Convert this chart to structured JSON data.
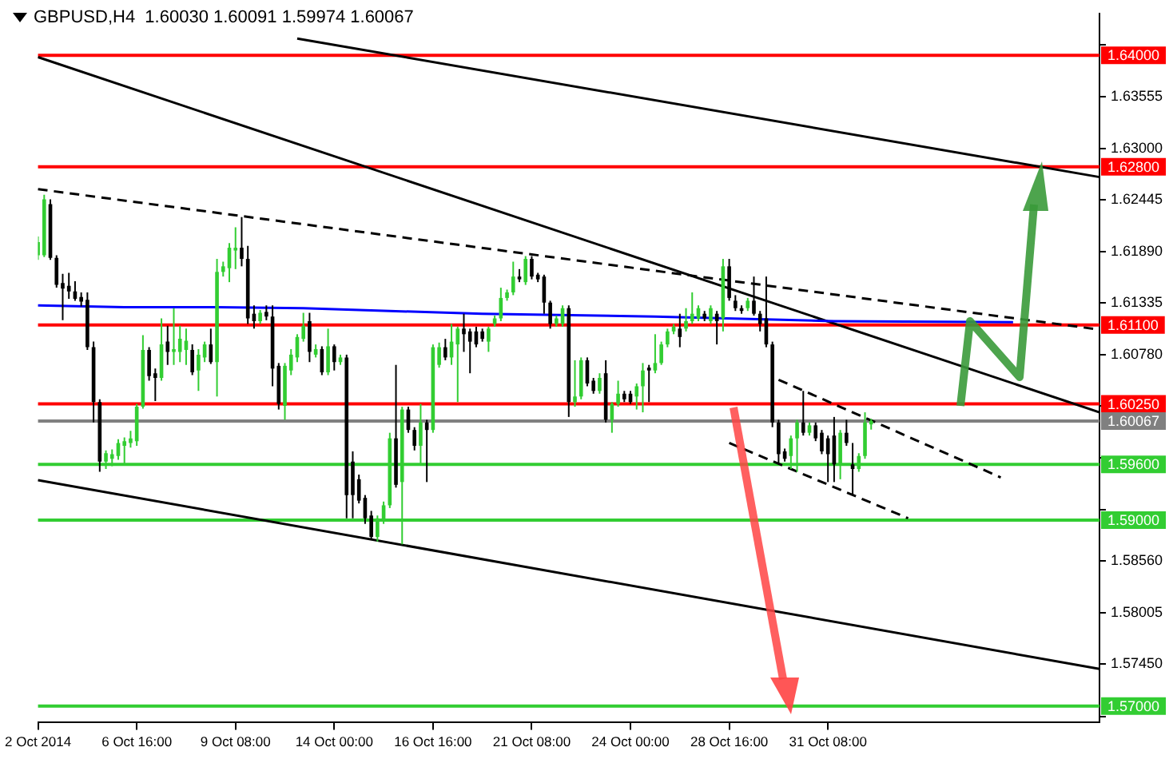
{
  "chart_data": {
    "type": "candlestick",
    "title": "GBPUSD,H4  1.60030 1.60091 1.59974 1.60067",
    "categories": [
      "2 Oct 2014",
      null,
      null,
      null,
      null,
      null,
      null,
      null,
      null,
      null,
      null,
      null,
      null,
      null,
      null,
      null,
      "6 Oct 16:00",
      null,
      null,
      null,
      null,
      null,
      null,
      null,
      null,
      null,
      null,
      null,
      null,
      null,
      null,
      null,
      "9 Oct 08:00",
      null,
      null,
      null,
      null,
      null,
      null,
      null,
      null,
      null,
      null,
      null,
      null,
      null,
      null,
      null,
      "14 Oct 00:00",
      null,
      null,
      null,
      null,
      null,
      null,
      null,
      null,
      null,
      null,
      null,
      null,
      null,
      null,
      null,
      "16 Oct 16:00",
      null,
      null,
      null,
      null,
      null,
      null,
      null,
      null,
      null,
      null,
      null,
      null,
      null,
      null,
      null,
      "21 Oct 08:00",
      null,
      null,
      null,
      null,
      null,
      null,
      null,
      null,
      null,
      null,
      null,
      null,
      null,
      null,
      null,
      "24 Oct 00:00",
      null,
      null,
      null,
      null,
      null,
      null,
      null,
      null,
      null,
      null,
      null,
      null,
      null,
      null,
      null,
      "28 Oct 16:00",
      null,
      null,
      null,
      null,
      null,
      null,
      null,
      null,
      null,
      null,
      null,
      null,
      null,
      null,
      null,
      "31 Oct 08:00",
      null,
      null,
      null,
      null,
      null,
      null,
      null,
      null,
      null,
      null,
      null,
      null,
      null,
      null,
      null,
      null,
      null,
      null,
      null,
      null,
      null,
      null,
      null,
      null,
      null,
      null,
      null,
      null,
      null,
      null,
      null,
      null,
      null,
      null,
      null,
      null,
      null,
      null,
      null,
      null,
      null,
      null,
      null,
      null
    ],
    "ohlc": [
      [
        1.6185,
        1.6205,
        1.618,
        1.6199
      ],
      [
        1.6185,
        1.625,
        1.6183,
        1.6245
      ],
      [
        1.624,
        1.6245,
        1.618,
        1.6182
      ],
      [
        1.6182,
        1.6185,
        1.615,
        1.6153
      ],
      [
        1.6155,
        1.6165,
        1.6115,
        1.6149
      ],
      [
        1.6152,
        1.6166,
        1.6138,
        1.6146
      ],
      [
        1.6146,
        1.6157,
        1.6136,
        1.6138
      ],
      [
        1.614,
        1.6145,
        1.613,
        1.6135
      ],
      [
        1.6137,
        1.6145,
        1.6083,
        1.6086
      ],
      [
        1.6086,
        1.6092,
        1.6005,
        1.6027
      ],
      [
        1.6027,
        1.603,
        1.5952,
        1.5963
      ],
      [
        1.5963,
        1.5975,
        1.5955,
        1.5972
      ],
      [
        1.5966,
        1.5976,
        1.5958,
        1.5971
      ],
      [
        1.5969,
        1.5987,
        1.5965,
        1.5983
      ],
      [
        1.598,
        1.5989,
        1.5961,
        1.5985
      ],
      [
        1.5983,
        1.5996,
        1.5978,
        1.5988
      ],
      [
        1.5985,
        1.6025,
        1.598,
        1.6022
      ],
      [
        1.6022,
        1.6099,
        1.602,
        1.6083
      ],
      [
        1.6083,
        1.6086,
        1.605,
        1.6055
      ],
      [
        1.6058,
        1.6063,
        1.6028,
        1.6053
      ],
      [
        1.6053,
        1.6117,
        1.605,
        1.6089
      ],
      [
        1.6092,
        1.6109,
        1.6067,
        1.6081
      ],
      [
        1.6081,
        1.6128,
        1.6067,
        1.6084
      ],
      [
        1.6081,
        1.6109,
        1.607,
        1.6095
      ],
      [
        1.6083,
        1.6106,
        1.6067,
        1.6093
      ],
      [
        1.6083,
        1.6089,
        1.6056,
        1.6059
      ],
      [
        1.6061,
        1.6084,
        1.6039,
        1.6078
      ],
      [
        1.6075,
        1.6092,
        1.607,
        1.6089
      ],
      [
        1.6089,
        1.6106,
        1.6068,
        1.607
      ],
      [
        1.607,
        1.6181,
        1.6033,
        1.6167
      ],
      [
        1.6167,
        1.6178,
        1.6162,
        1.6173
      ],
      [
        1.6171,
        1.6198,
        1.6156,
        1.6193
      ],
      [
        1.619,
        1.6215,
        1.617,
        1.6193
      ],
      [
        1.6193,
        1.6226,
        1.6173,
        1.6181
      ],
      [
        1.6181,
        1.6195,
        1.6111,
        1.6117
      ],
      [
        1.6122,
        1.6131,
        1.6106,
        1.6114
      ],
      [
        1.6114,
        1.6126,
        1.6111,
        1.6123
      ],
      [
        1.6124,
        1.6131,
        1.6115,
        1.6119
      ],
      [
        1.6119,
        1.6131,
        1.6044,
        1.6063
      ],
      [
        1.6066,
        1.6069,
        1.6019,
        1.6025
      ],
      [
        1.6023,
        1.6069,
        1.6008,
        1.6066
      ],
      [
        1.6061,
        1.6084,
        1.6056,
        1.6078
      ],
      [
        1.6075,
        1.61,
        1.607,
        1.6097
      ],
      [
        1.6095,
        1.6123,
        1.6092,
        1.6109
      ],
      [
        1.6114,
        1.6123,
        1.607,
        1.6081
      ],
      [
        1.6078,
        1.6089,
        1.6075,
        1.6084
      ],
      [
        1.6084,
        1.6087,
        1.6056,
        1.6059
      ],
      [
        1.6059,
        1.6106,
        1.6056,
        1.6087
      ],
      [
        1.6087,
        1.6089,
        1.6061,
        1.607
      ],
      [
        1.607,
        1.6078,
        1.6067,
        1.6075
      ],
      [
        1.6075,
        1.6078,
        1.5902,
        1.5927
      ],
      [
        1.5963,
        1.5974,
        1.5902,
        1.5927
      ],
      [
        1.5944,
        1.5949,
        1.5918,
        1.5921
      ],
      [
        1.5924,
        1.5927,
        1.5896,
        1.5902
      ],
      [
        1.5905,
        1.591,
        1.5879,
        1.5882
      ],
      [
        1.5882,
        1.5905,
        1.5877,
        1.5902
      ],
      [
        1.59,
        1.592,
        1.5896,
        1.5916
      ],
      [
        1.5916,
        1.5994,
        1.5913,
        1.5988
      ],
      [
        1.5988,
        1.6067,
        1.5935,
        1.5938
      ],
      [
        1.5941,
        1.6022,
        1.5874,
        1.6019
      ],
      [
        1.6019,
        1.6022,
        1.5994,
        1.5997
      ],
      [
        1.5997,
        1.6,
        1.5975,
        1.598
      ],
      [
        1.598,
        1.6025,
        1.596,
        1.6005
      ],
      [
        1.6005,
        1.6008,
        1.5941,
        1.5997
      ],
      [
        1.5997,
        1.6089,
        1.5994,
        1.6086
      ],
      [
        1.6067,
        1.6091,
        1.6064,
        1.6086
      ],
      [
        1.6086,
        1.6095,
        1.6072,
        1.6075
      ],
      [
        1.6075,
        1.6111,
        1.6067,
        1.6092
      ],
      [
        1.6089,
        1.6108,
        1.6027,
        1.6106
      ],
      [
        1.6106,
        1.6122,
        1.6081,
        1.61
      ],
      [
        1.6103,
        1.6106,
        1.6058,
        1.6092
      ],
      [
        1.6103,
        1.6108,
        1.6086,
        1.6089
      ],
      [
        1.6103,
        1.6106,
        1.6092,
        1.6095
      ],
      [
        1.6092,
        1.6108,
        1.6081,
        1.6106
      ],
      [
        1.6111,
        1.612,
        1.6108,
        1.6117
      ],
      [
        1.6117,
        1.615,
        1.6114,
        1.6139
      ],
      [
        1.6139,
        1.6148,
        1.6136,
        1.6145
      ],
      [
        1.6145,
        1.6178,
        1.6142,
        1.6162
      ],
      [
        1.6162,
        1.617,
        1.6156,
        1.6159
      ],
      [
        1.6156,
        1.6184,
        1.6153,
        1.6181
      ],
      [
        1.6181,
        1.6184,
        1.6159,
        1.6162
      ],
      [
        1.6164,
        1.6166,
        1.6156,
        1.6159
      ],
      [
        1.6162,
        1.6164,
        1.6122,
        1.6134
      ],
      [
        1.6134,
        1.6136,
        1.6106,
        1.6111
      ],
      [
        1.6111,
        1.612,
        1.6108,
        1.6117
      ],
      [
        1.6111,
        1.6131,
        1.6108,
        1.6128
      ],
      [
        1.6128,
        1.6131,
        1.6011,
        1.6027
      ],
      [
        1.6027,
        1.6072,
        1.6022,
        1.6033
      ],
      [
        1.6033,
        1.6075,
        1.603,
        1.6072
      ],
      [
        1.6072,
        1.6075,
        1.6044,
        1.6047
      ],
      [
        1.605,
        1.6053,
        1.6036,
        1.6039
      ],
      [
        1.6039,
        1.6058,
        1.6036,
        1.6053
      ],
      [
        1.6058,
        1.6072,
        1.6005,
        1.6008
      ],
      [
        1.6008,
        1.6027,
        1.5994,
        1.6025
      ],
      [
        1.6025,
        1.605,
        1.6022,
        1.6036
      ],
      [
        1.6036,
        1.6039,
        1.6027,
        1.603
      ],
      [
        1.6036,
        1.6039,
        1.6025,
        1.6027
      ],
      [
        1.6033,
        1.6047,
        1.6019,
        1.6044
      ],
      [
        1.6044,
        1.6069,
        1.6016,
        1.6061
      ],
      [
        1.6064,
        1.6067,
        1.6027,
        1.6061
      ],
      [
        1.6061,
        1.61,
        1.6058,
        1.6069
      ],
      [
        1.6069,
        1.6092,
        1.6067,
        1.6089
      ],
      [
        1.6089,
        1.6106,
        1.6086,
        1.6103
      ],
      [
        1.6103,
        1.6111,
        1.61,
        1.6108
      ],
      [
        1.6106,
        1.6122,
        1.6086,
        1.6097
      ],
      [
        1.6106,
        1.6128,
        1.6103,
        1.6114
      ],
      [
        1.6114,
        1.6145,
        1.6111,
        1.6122
      ],
      [
        1.6117,
        1.6131,
        1.6114,
        1.6128
      ],
      [
        1.6122,
        1.6125,
        1.6114,
        1.6117
      ],
      [
        1.6114,
        1.6131,
        1.6111,
        1.6128
      ],
      [
        1.6122,
        1.6125,
        1.6089,
        1.6114
      ],
      [
        1.6117,
        1.6181,
        1.6103,
        1.6173
      ],
      [
        1.6173,
        1.6181,
        1.6136,
        1.6139
      ],
      [
        1.6136,
        1.6142,
        1.6125,
        1.6128
      ],
      [
        1.6128,
        1.6131,
        1.6122,
        1.6125
      ],
      [
        1.6128,
        1.6139,
        1.6125,
        1.6136
      ],
      [
        1.6136,
        1.6162,
        1.612,
        1.6122
      ],
      [
        1.6122,
        1.6125,
        1.6103,
        1.6111
      ],
      [
        1.6117,
        1.6162,
        1.6086,
        1.6089
      ],
      [
        1.6089,
        1.6092,
        1.6,
        1.6005
      ],
      [
        1.6005,
        1.6008,
        1.596,
        1.5971
      ],
      [
        1.5974,
        1.5977,
        1.5963,
        1.5966
      ],
      [
        1.5969,
        1.5991,
        1.5955,
        1.5988
      ],
      [
        1.5988,
        1.6008,
        1.5952,
        1.6005
      ],
      [
        1.6005,
        1.6039,
        1.5991,
        1.5994
      ],
      [
        1.5994,
        1.6005,
        1.5991,
        1.6002
      ],
      [
        1.6002,
        1.6005,
        1.5985,
        1.5988
      ],
      [
        1.5994,
        1.5997,
        1.5971,
        1.5974
      ],
      [
        1.5988,
        1.5991,
        1.5941,
        1.5971
      ],
      [
        1.5991,
        1.6011,
        1.5941,
        1.596
      ],
      [
        1.596,
        1.5997,
        1.5944,
        1.5994
      ],
      [
        1.5994,
        1.6008,
        1.598,
        1.5983
      ],
      [
        1.596,
        1.5983,
        1.5927,
        1.5955
      ],
      [
        1.5955,
        1.5972,
        1.5952,
        1.5969
      ],
      [
        1.5969,
        1.6016,
        1.5966,
        1.6005
      ],
      [
        1.6003,
        1.60091,
        1.59974,
        1.60067
      ],
      null,
      null,
      null,
      null,
      null,
      null,
      null,
      null,
      null,
      null,
      null,
      null,
      null,
      null,
      null,
      null,
      null,
      null,
      null,
      null,
      null,
      null,
      null,
      null,
      null,
      null,
      null,
      null,
      null,
      null,
      null,
      null,
      null,
      null,
      null,
      null,
      null
    ],
    "series": [
      {
        "type": "line",
        "color": "#0000ff",
        "values": [
          1.6131,
          null,
          null,
          null,
          null,
          null,
          null,
          null,
          null,
          null,
          null,
          null,
          null,
          null,
          1.6129,
          null,
          null,
          null,
          null,
          null,
          null,
          null,
          null,
          null,
          null,
          null,
          null,
          null,
          null,
          1.6129,
          null,
          null,
          null,
          null,
          null,
          null,
          null,
          null,
          null,
          null,
          null,
          null,
          null,
          1.6128,
          null,
          null,
          null,
          null,
          null,
          null,
          null,
          null,
          null,
          null,
          null,
          null,
          null,
          1.6125,
          null,
          null,
          null,
          null,
          null,
          null,
          null,
          null,
          null,
          null,
          null,
          null,
          null,
          null,
          1.6122,
          null,
          null,
          null,
          null,
          null,
          null,
          null,
          null,
          null,
          null,
          null,
          null,
          null,
          null,
          null,
          null,
          null,
          null,
          null,
          null,
          null,
          null,
          null,
          null,
          null,
          null,
          null,
          1.6119,
          null,
          null,
          null,
          null,
          null,
          null,
          null,
          null,
          null,
          null,
          null,
          null,
          null,
          null,
          null,
          null,
          null,
          null,
          null,
          null,
          null,
          null,
          null,
          null,
          null,
          null,
          null,
          null,
          1.6114,
          null,
          null,
          null,
          null,
          null,
          null,
          null,
          null,
          null,
          null,
          null,
          null,
          null,
          null,
          null,
          null,
          null,
          null,
          null,
          null,
          null,
          null,
          null,
          null,
          null,
          null,
          null,
          null,
          1.6113,
          null,
          null,
          null,
          null,
          null,
          null,
          null,
          null,
          null,
          null,
          null,
          null,
          null,
          null
        ]
      },
      {
        "type": "line",
        "color": "#000000",
        "values": [
          null,
          null,
          null,
          null,
          null,
          null,
          null,
          null,
          null,
          null,
          null,
          null,
          null,
          null,
          null,
          null,
          null,
          null,
          null,
          null,
          null,
          null,
          null,
          null,
          null,
          null,
          null,
          null,
          null,
          null,
          null,
          null,
          null,
          null,
          null,
          null,
          null,
          null,
          null,
          null,
          null,
          null,
          1.6418,
          null,
          null,
          null,
          null,
          null,
          null,
          null,
          null,
          null,
          null,
          null,
          null,
          null,
          null,
          null,
          null,
          null,
          null,
          null,
          null,
          null,
          null,
          null,
          null,
          null,
          null,
          null,
          null,
          null,
          null,
          null,
          null,
          null,
          null,
          null,
          null,
          null,
          null,
          null,
          null,
          null,
          null,
          null,
          null,
          null,
          null,
          null,
          null,
          null,
          null,
          null,
          null,
          null,
          null,
          null,
          null,
          null,
          null,
          null,
          null,
          null,
          null,
          null,
          null,
          null,
          null,
          null,
          null,
          null,
          null,
          null,
          null,
          null,
          null,
          null,
          null,
          null,
          null,
          null,
          null,
          null,
          null,
          null,
          null,
          null,
          null,
          null,
          null,
          null,
          null,
          null,
          null,
          null,
          null,
          null,
          null,
          null,
          null,
          null,
          null,
          null,
          null,
          null,
          null,
          null,
          null,
          null,
          null,
          null,
          null,
          null,
          null,
          null,
          null,
          null,
          null,
          null,
          null,
          null,
          null,
          null,
          null,
          null,
          null,
          null,
          null,
          null,
          null,
          null,
          1.6269
        ]
      },
      {
        "type": "line",
        "color": "#000000",
        "values": [
          1.6398,
          null,
          null,
          null,
          null,
          null,
          null,
          null,
          null,
          null,
          null,
          null,
          null,
          null,
          null,
          null,
          null,
          null,
          null,
          null,
          null,
          null,
          null,
          null,
          null,
          null,
          null,
          null,
          null,
          null,
          null,
          null,
          null,
          null,
          null,
          null,
          null,
          null,
          null,
          null,
          null,
          null,
          null,
          null,
          null,
          null,
          null,
          null,
          null,
          null,
          null,
          null,
          null,
          null,
          null,
          null,
          null,
          null,
          null,
          null,
          null,
          null,
          null,
          null,
          null,
          null,
          null,
          null,
          null,
          null,
          null,
          null,
          null,
          null,
          null,
          null,
          null,
          null,
          null,
          null,
          null,
          null,
          null,
          null,
          null,
          null,
          null,
          null,
          null,
          null,
          null,
          null,
          null,
          null,
          null,
          null,
          null,
          null,
          null,
          null,
          null,
          null,
          null,
          null,
          null,
          null,
          null,
          null,
          null,
          null,
          null,
          null,
          null,
          null,
          null,
          null,
          null,
          null,
          null,
          null,
          null,
          null,
          null,
          null,
          null,
          null,
          null,
          null,
          null,
          null,
          null,
          null,
          null,
          null,
          null,
          null,
          null,
          null,
          null,
          null,
          null,
          null,
          null,
          null,
          null,
          null,
          null,
          null,
          null,
          null,
          null,
          null,
          null,
          null,
          null,
          null,
          null,
          null,
          null,
          null,
          null,
          null,
          null,
          null,
          null,
          null,
          null,
          null,
          null,
          null,
          null,
          null,
          1.6016
        ]
      },
      {
        "type": "line",
        "color": "#000000",
        "line_style": "dashed",
        "values": [
          1.6256,
          null,
          null,
          null,
          null,
          null,
          null,
          null,
          null,
          null,
          null,
          null,
          null,
          null,
          null,
          null,
          null,
          null,
          null,
          null,
          null,
          null,
          null,
          null,
          null,
          null,
          null,
          null,
          null,
          null,
          null,
          null,
          null,
          null,
          null,
          null,
          null,
          null,
          null,
          null,
          null,
          null,
          null,
          null,
          null,
          null,
          null,
          null,
          null,
          null,
          null,
          null,
          null,
          null,
          null,
          null,
          null,
          null,
          null,
          null,
          null,
          null,
          null,
          null,
          null,
          null,
          null,
          null,
          null,
          null,
          null,
          null,
          null,
          null,
          null,
          null,
          null,
          null,
          null,
          null,
          null,
          null,
          null,
          null,
          null,
          null,
          null,
          null,
          null,
          null,
          null,
          null,
          null,
          null,
          null,
          null,
          null,
          null,
          null,
          null,
          null,
          null,
          null,
          null,
          null,
          null,
          null,
          null,
          null,
          null,
          null,
          null,
          null,
          null,
          null,
          null,
          null,
          null,
          null,
          null,
          null,
          null,
          null,
          null,
          null,
          null,
          null,
          null,
          null,
          null,
          null,
          null,
          null,
          null,
          null,
          null,
          null,
          null,
          null,
          null,
          null,
          null,
          null,
          null,
          null,
          null,
          null,
          null,
          null,
          null,
          null,
          null,
          null,
          null,
          null,
          null,
          null,
          null,
          null,
          null,
          null,
          null,
          null,
          null,
          null,
          null,
          null,
          null,
          null,
          null,
          null,
          null,
          1.6105
        ]
      },
      {
        "type": "line",
        "color": "#000000",
        "values": [
          1.5943,
          null,
          null,
          null,
          null,
          null,
          null,
          null,
          null,
          null,
          null,
          null,
          null,
          null,
          null,
          null,
          null,
          null,
          null,
          null,
          null,
          null,
          null,
          null,
          null,
          null,
          null,
          null,
          null,
          null,
          null,
          null,
          null,
          null,
          null,
          null,
          null,
          null,
          null,
          null,
          null,
          null,
          null,
          null,
          null,
          null,
          null,
          null,
          null,
          null,
          null,
          null,
          null,
          null,
          null,
          null,
          null,
          null,
          null,
          null,
          null,
          null,
          null,
          null,
          null,
          null,
          null,
          null,
          null,
          null,
          null,
          null,
          null,
          null,
          null,
          null,
          null,
          null,
          null,
          null,
          null,
          null,
          null,
          null,
          null,
          null,
          null,
          null,
          null,
          null,
          null,
          null,
          null,
          null,
          null,
          null,
          null,
          null,
          null,
          null,
          null,
          null,
          null,
          null,
          null,
          null,
          null,
          null,
          null,
          null,
          null,
          null,
          null,
          null,
          null,
          null,
          null,
          null,
          null,
          null,
          null,
          null,
          null,
          null,
          null,
          null,
          null,
          null,
          null,
          null,
          null,
          null,
          null,
          null,
          null,
          null,
          null,
          null,
          null,
          null,
          null,
          null,
          null,
          null,
          null,
          null,
          null,
          null,
          null,
          null,
          null,
          null,
          null,
          null,
          null,
          null,
          null,
          null,
          null,
          null,
          null,
          null,
          null,
          null,
          null,
          null,
          null,
          null,
          null,
          null,
          null,
          null,
          1.574
        ]
      },
      {
        "type": "line",
        "color": "#000000",
        "line_style": "dashed",
        "values": [
          null,
          null,
          null,
          null,
          null,
          null,
          null,
          null,
          null,
          null,
          null,
          null,
          null,
          null,
          null,
          null,
          null,
          null,
          null,
          null,
          null,
          null,
          null,
          null,
          null,
          null,
          null,
          null,
          null,
          null,
          null,
          null,
          null,
          null,
          null,
          null,
          null,
          null,
          null,
          null,
          null,
          null,
          null,
          null,
          null,
          null,
          null,
          null,
          null,
          null,
          null,
          null,
          null,
          null,
          null,
          null,
          null,
          null,
          null,
          null,
          null,
          null,
          null,
          null,
          null,
          null,
          null,
          null,
          null,
          null,
          null,
          null,
          null,
          null,
          null,
          null,
          null,
          null,
          null,
          null,
          null,
          null,
          null,
          null,
          null,
          null,
          null,
          null,
          null,
          null,
          null,
          null,
          null,
          null,
          null,
          null,
          null,
          null,
          null,
          null,
          null,
          null,
          null,
          null,
          null,
          null,
          null,
          null,
          null,
          null,
          null,
          null,
          null,
          null,
          null,
          null,
          null,
          null,
          null,
          null,
          1.6051,
          null,
          null,
          null,
          null,
          null,
          null,
          null,
          null,
          null,
          null,
          null,
          null,
          null,
          null,
          null,
          null,
          null,
          null,
          null,
          null,
          null,
          null,
          null,
          null,
          null,
          null,
          null,
          null,
          null,
          null,
          null,
          null,
          null,
          null,
          null,
          1.5946,
          null,
          null,
          null,
          null,
          null,
          null,
          null,
          null,
          null,
          null,
          null,
          null,
          null,
          null,
          null,
          null
        ]
      },
      {
        "type": "line",
        "color": "#000000",
        "line_style": "dashed",
        "values": [
          null,
          null,
          null,
          null,
          null,
          null,
          null,
          null,
          null,
          null,
          null,
          null,
          null,
          null,
          null,
          null,
          null,
          null,
          null,
          null,
          null,
          null,
          null,
          null,
          null,
          null,
          null,
          null,
          null,
          null,
          null,
          null,
          null,
          null,
          null,
          null,
          null,
          null,
          null,
          null,
          null,
          null,
          null,
          null,
          null,
          null,
          null,
          null,
          null,
          null,
          null,
          null,
          null,
          null,
          null,
          null,
          null,
          null,
          null,
          null,
          null,
          null,
          null,
          null,
          null,
          null,
          null,
          null,
          null,
          null,
          null,
          null,
          null,
          null,
          null,
          null,
          null,
          null,
          null,
          null,
          null,
          null,
          null,
          null,
          null,
          null,
          null,
          null,
          null,
          null,
          null,
          null,
          null,
          null,
          null,
          null,
          null,
          null,
          null,
          null,
          null,
          null,
          null,
          null,
          null,
          null,
          null,
          null,
          null,
          null,
          null,
          null,
          1.5983,
          null,
          null,
          null,
          null,
          null,
          null,
          null,
          null,
          null,
          null,
          null,
          null,
          null,
          null,
          null,
          null,
          null,
          null,
          null,
          null,
          null,
          null,
          null,
          null,
          null,
          null,
          null,
          null,
          1.5902,
          null,
          null,
          null,
          null,
          null,
          null,
          null,
          null,
          null,
          null,
          null,
          null,
          null,
          null,
          null,
          null,
          null,
          null,
          null,
          null,
          null,
          null,
          null,
          null,
          null,
          null,
          null,
          null,
          null,
          null,
          null
        ]
      }
    ],
    "ylim": [
      1.5683,
      1.6445
    ],
    "yticks": [
      {
        "value": 1.5689,
        "label": null
      },
      {
        "value": 1.5745,
        "label": "1.57450"
      },
      {
        "value": 1.58005,
        "label": "1.58005"
      },
      {
        "value": 1.5856,
        "label": "1.58560"
      },
      {
        "value": 1.59115,
        "label": null
      },
      {
        "value": 1.5967,
        "label": null
      },
      {
        "value": 1.60225,
        "label": null
      },
      {
        "value": 1.6078,
        "label": "1.60780"
      },
      {
        "value": 1.61335,
        "label": "1.61335"
      },
      {
        "value": 1.6189,
        "label": "1.61890"
      },
      {
        "value": 1.62445,
        "label": "1.62445"
      },
      {
        "value": 1.63,
        "label": "1.63000"
      },
      {
        "value": 1.63555,
        "label": "1.63555"
      },
      {
        "value": 1.6411,
        "label": null
      }
    ],
    "ref_lines": [
      {
        "axis": "y",
        "value": 1.64,
        "label": "1.64000",
        "color": "#ff0000"
      },
      {
        "axis": "y",
        "value": 1.628,
        "label": "1.62800",
        "color": "#ff0000"
      },
      {
        "axis": "y",
        "value": 1.611,
        "label": "1.61100",
        "color": "#ff0000"
      },
      {
        "axis": "y",
        "value": 1.6025,
        "label": "1.60250",
        "color": "#ff0000"
      },
      {
        "axis": "y",
        "value": 1.60067,
        "label": "1.60067",
        "color": "#808080"
      },
      {
        "axis": "y",
        "value": 1.596,
        "label": "1.59600",
        "color": "#32cd32"
      },
      {
        "axis": "y",
        "value": 1.59,
        "label": "1.59000",
        "color": "#32cd32"
      },
      {
        "axis": "y",
        "value": 1.57,
        "label": "1.57000",
        "color": "#32cd32"
      }
    ],
    "grid": false,
    "legend": false,
    "marker": "none"
  }
}
